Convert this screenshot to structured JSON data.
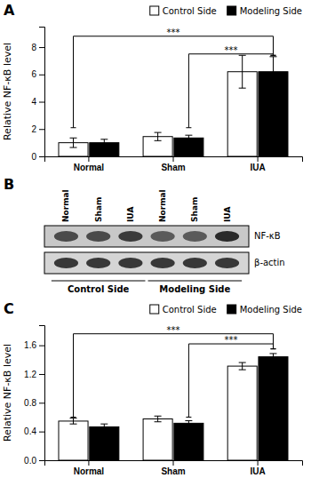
{
  "chart_data": [
    {
      "type": "bar",
      "title": "A",
      "categories": [
        "Normal",
        "Sham",
        "IUA"
      ],
      "series": [
        {
          "name": "Control Side",
          "color": "white",
          "values": [
            1.0,
            1.45,
            6.2
          ],
          "errors": [
            0.35,
            0.3,
            1.2
          ]
        },
        {
          "name": "Modeling Side",
          "color": "black",
          "values": [
            1.0,
            1.35,
            6.2
          ],
          "errors": [
            0.25,
            0.2,
            1.1
          ]
        }
      ],
      "y_label": "Relative NF-κB level",
      "ylim": [
        0,
        9.5
      ],
      "yticks": [
        0,
        2,
        4,
        6,
        8
      ],
      "grid": false,
      "legend": "upper right",
      "annotations": [
        {
          "text": "***",
          "left_category": "Normal",
          "left_series": "Control Side",
          "right_category": "IUA",
          "right_series": "Modeling Side",
          "y_top": 8.8,
          "y_left": 2.1,
          "y_right": 7.4
        },
        {
          "text": "***",
          "left_category": "Sham",
          "left_series": "Modeling Side",
          "right_category": "IUA",
          "right_series": "Modeling Side",
          "y_top": 7.5,
          "y_left": 2.1,
          "y_right": 7.4
        }
      ]
    },
    {
      "type": "blot",
      "title": "B",
      "categories": [
        "Normal",
        "Sham",
        "IUA",
        "Normal",
        "Sham",
        "IUA"
      ],
      "series": [
        {
          "name": "NF-κB",
          "color": "#c8c8c8",
          "colors": [
            "#4a4a4a",
            "#4a4a4a",
            "#3a3a3a",
            "#5a5a5a",
            "#5a5a5a",
            "#2a2a2a"
          ]
        },
        {
          "name": "β-actin",
          "color": "#d5d5d5",
          "colors": [
            "#383838",
            "#383838",
            "#383838",
            "#383838",
            "#383838",
            "#383838"
          ]
        }
      ],
      "groups": [
        "Control Side",
        "Modeling Side"
      ]
    },
    {
      "type": "bar",
      "title": "C",
      "categories": [
        "Normal",
        "Sham",
        "IUA"
      ],
      "series": [
        {
          "name": "Control Side",
          "color": "white",
          "values": [
            0.545,
            0.575,
            1.31
          ],
          "errors": [
            0.04,
            0.04,
            0.05
          ]
        },
        {
          "name": "Modeling Side",
          "color": "black",
          "values": [
            0.465,
            0.515,
            1.44
          ],
          "errors": [
            0.04,
            0.035,
            0.045
          ]
        }
      ],
      "y_label": "Relative NF-κB level",
      "ylim": [
        0,
        1.88
      ],
      "yticks": [
        {
          "value": 0.0,
          "label": "0.0"
        },
        0.4,
        0.8,
        1.2,
        1.6
      ],
      "grid": false,
      "legend": "upper right",
      "annotations": [
        {
          "text": "***",
          "left_category": "Normal",
          "left_series": "Control Side",
          "right_category": "IUA",
          "right_series": "Modeling Side",
          "y_top": 1.76,
          "y_left": 0.6,
          "y_right": 1.55
        },
        {
          "text": "***",
          "left_category": "Sham",
          "left_series": "Modeling Side",
          "right_category": "IUA",
          "right_series": "Modeling Side",
          "y_top": 1.62,
          "y_left": 0.6,
          "y_right": 1.55
        }
      ]
    }
  ]
}
